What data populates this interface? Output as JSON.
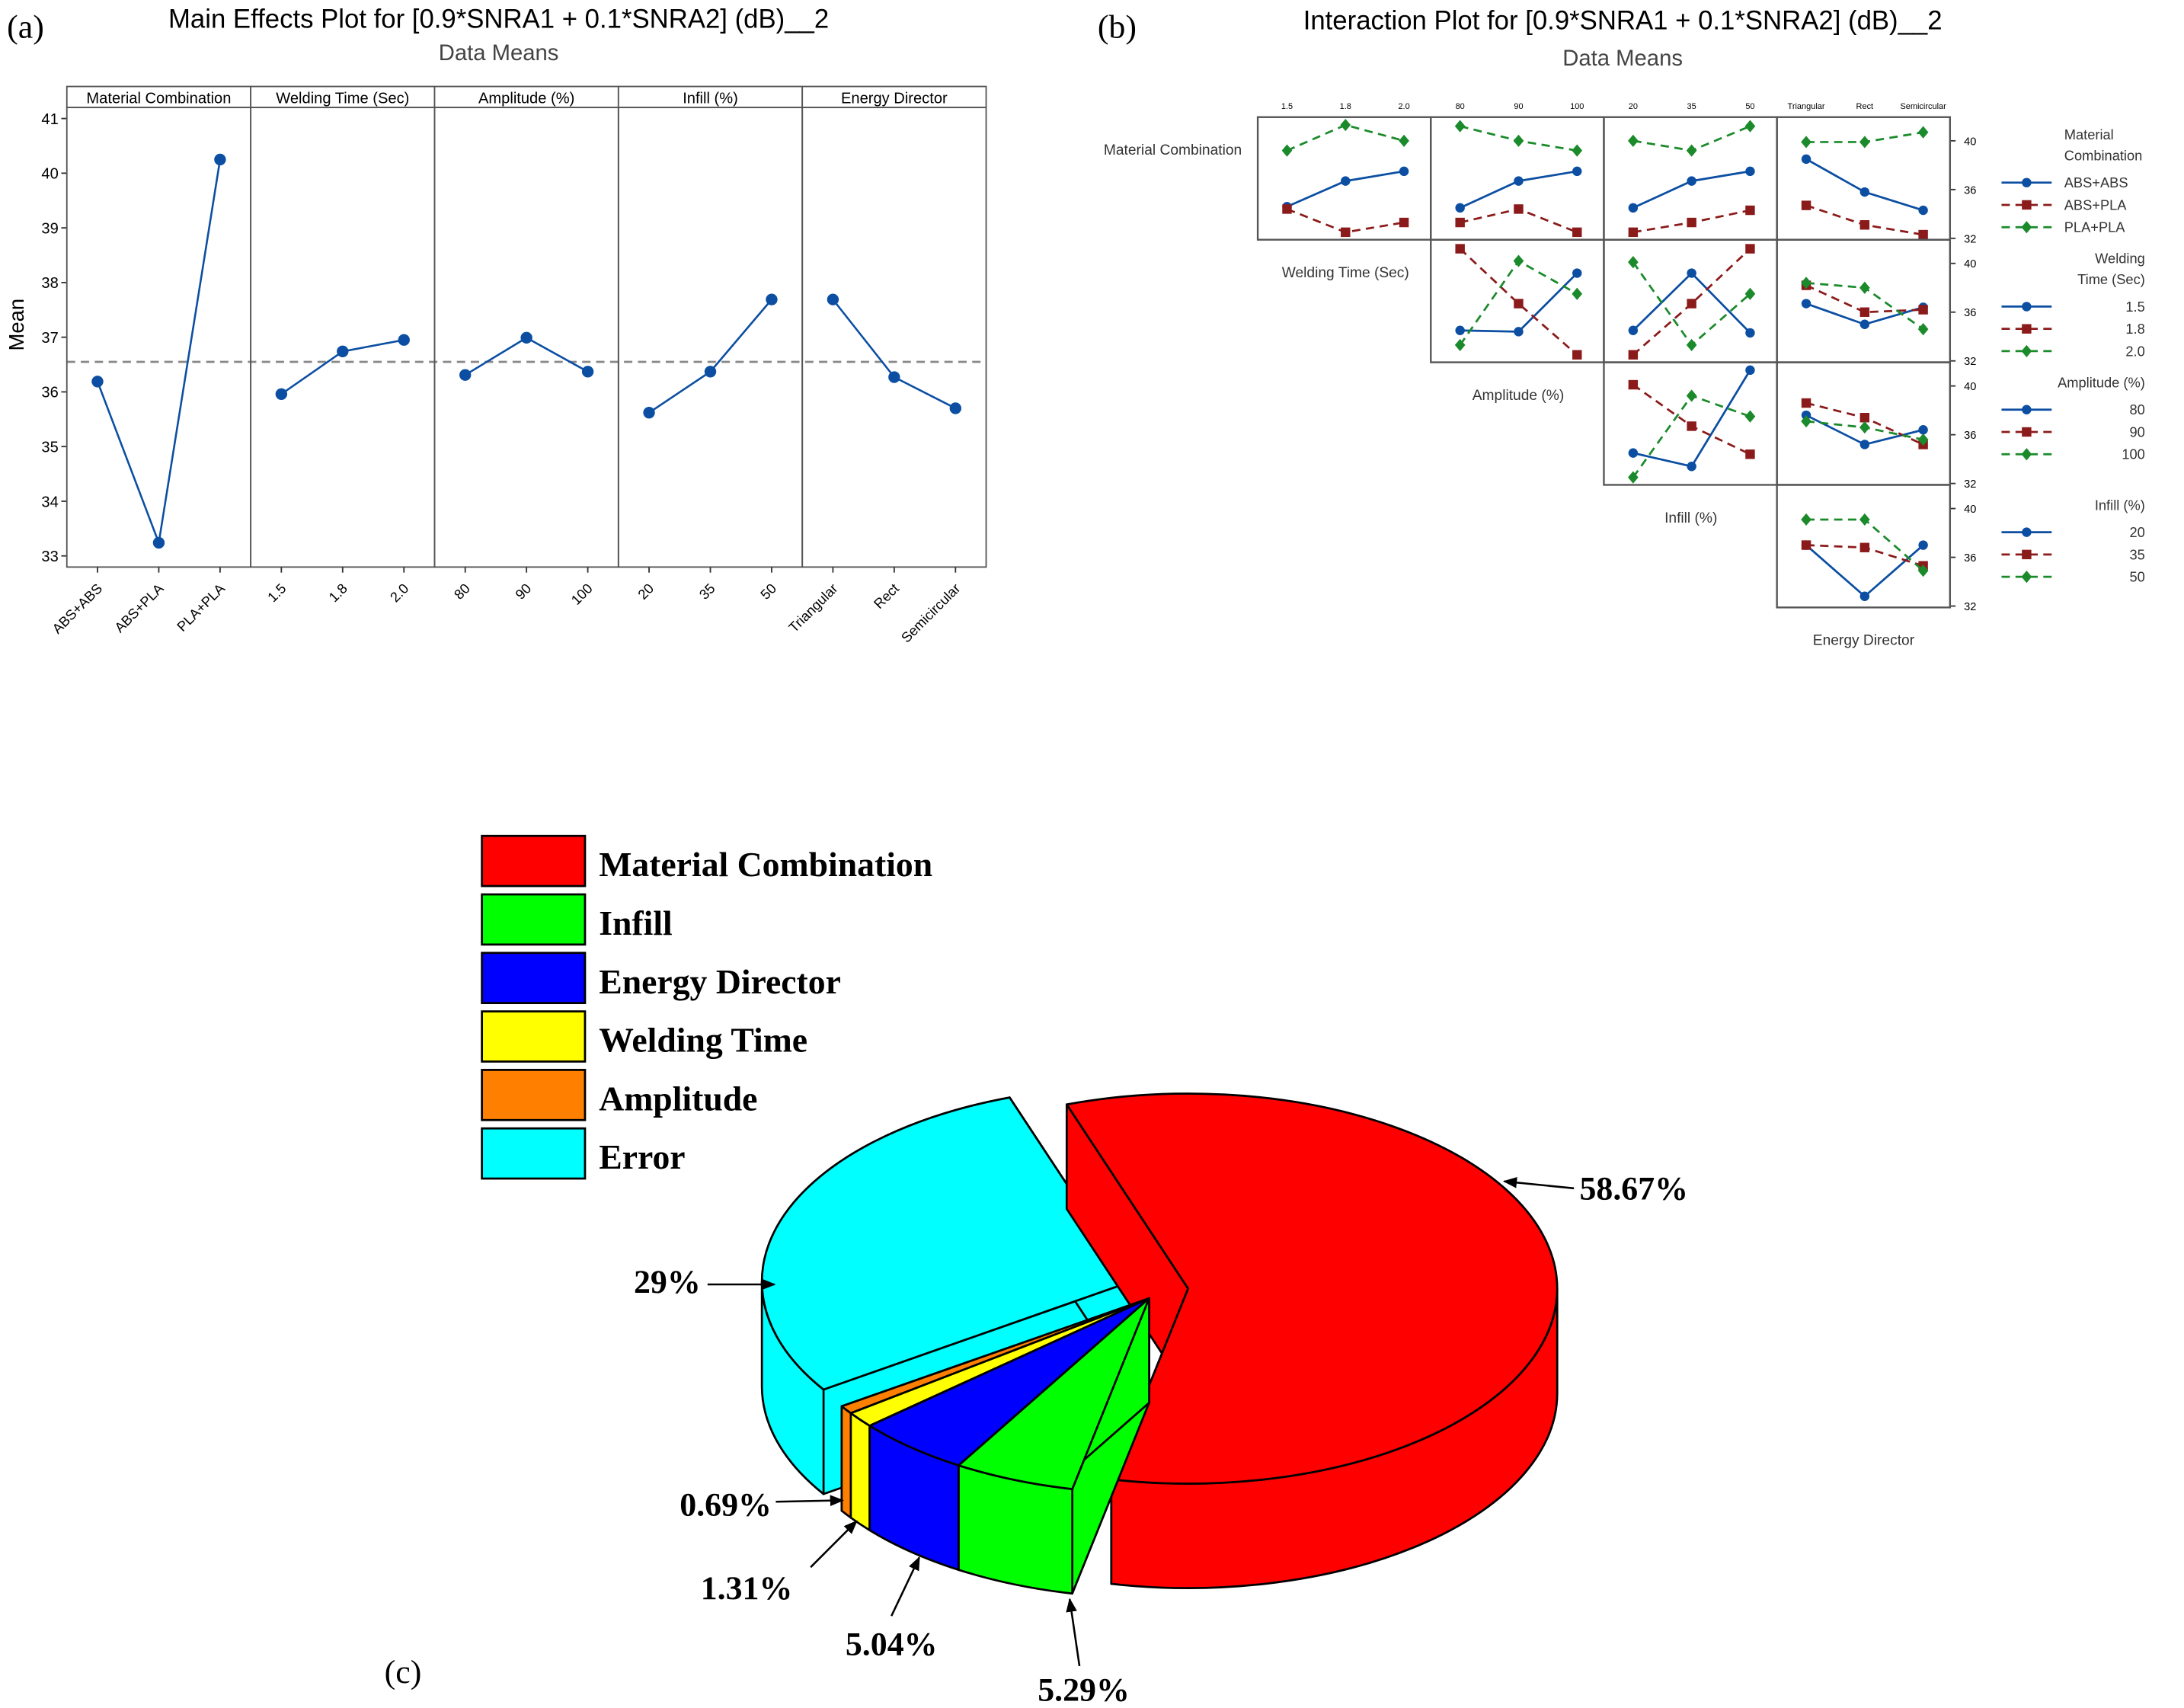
{
  "panel_a": {
    "label": "(a)",
    "title": "Main Effects Plot for [0.9*SNRA1 + 0.1*SNRA2] (dB)__2",
    "subtitle": "Data Means"
  },
  "panel_b": {
    "label": "(b)",
    "title": "Interaction Plot for [0.9*SNRA1 + 0.1*SNRA2] (dB)__2",
    "subtitle": "Data Means"
  },
  "panel_c": {
    "label": "(c)"
  },
  "chart_data": [
    {
      "type": "line",
      "title": "Main Effects Plot for [0.9*SNRA1 + 0.1*SNRA2] (dB)__2",
      "subtitle": "Data Means",
      "ylabel": "Mean",
      "ylim": [
        33,
        41
      ],
      "yticks": [
        33,
        34,
        35,
        36,
        37,
        38,
        39,
        40,
        41
      ],
      "reference_line": 36.55,
      "color": "#0b4ea2",
      "factors": [
        {
          "name": "Material Combination",
          "levels": [
            "ABS+ABS",
            "ABS+PLA",
            "PLA+PLA"
          ],
          "values": [
            36.19,
            33.24,
            40.25
          ]
        },
        {
          "name": "Welding Time (Sec)",
          "levels": [
            "1.5",
            "1.8",
            "2.0"
          ],
          "values": [
            35.96,
            36.74,
            36.95
          ]
        },
        {
          "name": "Amplitude (%)",
          "levels": [
            "80",
            "90",
            "100"
          ],
          "values": [
            36.31,
            36.99,
            36.37
          ]
        },
        {
          "name": "Infill (%)",
          "levels": [
            "20",
            "35",
            "50"
          ],
          "values": [
            35.62,
            36.37,
            37.69
          ]
        },
        {
          "name": "Energy Director",
          "levels": [
            "Triangular",
            "Rect",
            "Semicircular"
          ],
          "values": [
            37.69,
            36.27,
            35.7
          ]
        }
      ]
    },
    {
      "type": "line",
      "title": "Interaction Plot for [0.9*SNRA1 + 0.1*SNRA2] (dB)__2",
      "subtitle": "Data Means",
      "yticks": [
        32,
        36,
        40
      ],
      "series_styles": [
        {
          "color": "#0b4ea2",
          "marker": "circle",
          "dash": "solid"
        },
        {
          "color": "#8b1a1a",
          "marker": "square",
          "dash": "dashed"
        },
        {
          "color": "#1a8a2a",
          "marker": "diamond",
          "dash": "dashed"
        }
      ],
      "factors": [
        {
          "name": "Material Combination",
          "legend_title": [
            "Material",
            "Combination"
          ],
          "levels": [
            "ABS+ABS",
            "ABS+PLA",
            "PLA+PLA"
          ]
        },
        {
          "name": "Welding Time (Sec)",
          "legend_title": [
            "Welding",
            "Time (Sec)"
          ],
          "levels": [
            "1.5",
            "1.8",
            "2.0"
          ]
        },
        {
          "name": "Amplitude (%)",
          "legend_title": [
            "Amplitude (%)"
          ],
          "levels": [
            "80",
            "90",
            "100"
          ]
        },
        {
          "name": "Infill (%)",
          "legend_title": [
            "Infill (%)"
          ],
          "levels": [
            "20",
            "35",
            "50"
          ]
        },
        {
          "name": "Energy Director",
          "levels": [
            "Triangular",
            "Rect",
            "Semicircular"
          ]
        }
      ],
      "cells": [
        {
          "row": "Material Combination",
          "col": "Welding Time (Sec)",
          "series": [
            [
              34.6,
              36.7,
              37.5
            ],
            [
              34.4,
              32.5,
              33.3
            ],
            [
              39.2,
              41.3,
              40.0
            ]
          ]
        },
        {
          "row": "Material Combination",
          "col": "Amplitude (%)",
          "series": [
            [
              34.5,
              36.7,
              37.5
            ],
            [
              33.3,
              34.4,
              32.5
            ],
            [
              41.2,
              40.0,
              39.2
            ]
          ]
        },
        {
          "row": "Material Combination",
          "col": "Infill (%)",
          "series": [
            [
              34.5,
              36.7,
              37.5
            ],
            [
              32.5,
              33.3,
              34.3
            ],
            [
              40.0,
              39.2,
              41.2
            ]
          ]
        },
        {
          "row": "Material Combination",
          "col": "Energy Director",
          "series": [
            [
              38.5,
              35.8,
              34.3
            ],
            [
              34.7,
              33.1,
              32.3
            ],
            [
              39.9,
              39.9,
              40.7
            ]
          ]
        },
        {
          "row": "Welding Time (Sec)",
          "col": "Amplitude (%)",
          "series": [
            [
              34.5,
              34.4,
              39.2
            ],
            [
              41.2,
              36.7,
              32.5
            ],
            [
              33.3,
              40.2,
              37.5
            ]
          ]
        },
        {
          "row": "Welding Time (Sec)",
          "col": "Infill (%)",
          "series": [
            [
              34.5,
              39.2,
              34.3
            ],
            [
              32.5,
              36.7,
              41.2
            ],
            [
              40.1,
              33.3,
              37.5
            ]
          ]
        },
        {
          "row": "Welding Time (Sec)",
          "col": "Energy Director",
          "series": [
            [
              36.7,
              35.0,
              36.4
            ],
            [
              38.2,
              36.0,
              36.2
            ],
            [
              38.4,
              38.0,
              34.6
            ]
          ]
        },
        {
          "row": "Amplitude (%)",
          "col": "Infill (%)",
          "series": [
            [
              34.5,
              33.4,
              41.3
            ],
            [
              40.1,
              36.7,
              34.4
            ],
            [
              32.5,
              39.2,
              37.5
            ]
          ]
        },
        {
          "row": "Amplitude (%)",
          "col": "Energy Director",
          "series": [
            [
              37.6,
              35.2,
              36.4
            ],
            [
              38.6,
              37.4,
              35.2
            ],
            [
              37.1,
              36.6,
              35.6
            ]
          ]
        },
        {
          "row": "Infill (%)",
          "col": "Energy Director",
          "series": [
            [
              37.0,
              32.8,
              37.0
            ],
            [
              37.0,
              36.8,
              35.3
            ],
            [
              39.1,
              39.1,
              34.9
            ]
          ]
        }
      ]
    },
    {
      "type": "pie",
      "style": "3d-exploded",
      "legend_placement": "top-left",
      "slices": [
        {
          "name": "Material Combination",
          "value": 58.67,
          "label": "58.67%",
          "color": "#ff0000"
        },
        {
          "name": "Infill",
          "value": 5.29,
          "label": "5.29%",
          "color": "#00ff00"
        },
        {
          "name": "Energy Director",
          "value": 5.04,
          "label": "5.04%",
          "color": "#0000ff"
        },
        {
          "name": "Welding Time",
          "value": 1.31,
          "label": "1.31%",
          "color": "#ffff00"
        },
        {
          "name": "Amplitude",
          "value": 0.69,
          "label": "0.69%",
          "color": "#ff8000"
        },
        {
          "name": "Error",
          "value": 29,
          "label": "29%",
          "color": "#00ffff"
        }
      ]
    }
  ]
}
